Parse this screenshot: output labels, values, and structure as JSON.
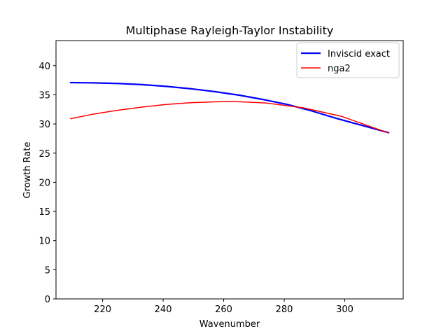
{
  "chart_data": {
    "type": "line",
    "title": "Multiphase Rayleigh-Taylor Instability",
    "xlabel": "Wavenumber",
    "ylabel": "Growth Rate",
    "xlim": [
      204.6,
      319.3
    ],
    "ylim": [
      0,
      44.3
    ],
    "xticks": [
      220,
      240,
      260,
      280,
      300
    ],
    "yticks": [
      0,
      5,
      10,
      15,
      20,
      25,
      30,
      35,
      40
    ],
    "grid": false,
    "legend_position": "top-right",
    "series": [
      {
        "name": "Inviscid exact",
        "color": "#0000ff",
        "line_width": 2.2,
        "x": [
          209.4,
          217.0,
          225.0,
          233.0,
          241.0,
          249.0,
          257.0,
          265.0,
          273.0,
          281.0,
          289.0,
          297.0,
          305.0,
          314.5
        ],
        "y": [
          37.1,
          37.05,
          36.95,
          36.75,
          36.45,
          36.05,
          35.55,
          34.95,
          34.2,
          33.35,
          32.25,
          31.0,
          29.85,
          28.5
        ]
      },
      {
        "name": "nga2",
        "color": "#ff0000",
        "line_width": 1.5,
        "x": [
          209.4,
          217.0,
          225.0,
          233.0,
          241.0,
          249.0,
          257.0,
          262.0,
          266.0,
          274.0,
          286.0,
          299.0,
          314.5
        ],
        "y": [
          30.9,
          31.7,
          32.35,
          32.9,
          33.35,
          33.65,
          33.8,
          33.85,
          33.8,
          33.6,
          32.8,
          31.3,
          28.45
        ]
      }
    ]
  }
}
